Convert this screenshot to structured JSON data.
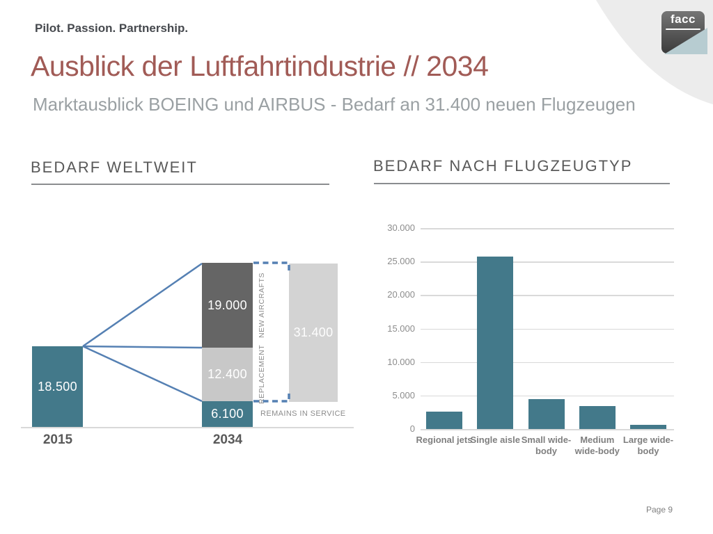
{
  "slide": {
    "tagline": "Pilot. Passion. Partnership.",
    "title": "Ausblick der Luftfahrtindustrie // 2034",
    "subtitle": "Marktausblick BOEING und AIRBUS - Bedarf an 31.400 neuen Flugzeugen",
    "page_label": "Page 9",
    "logo_text": "facc"
  },
  "colors": {
    "teal": "#43798a",
    "bar_dark": "#656565",
    "bar_light": "#c8c8c8",
    "bar_total": "#d3d3d3",
    "accent_blue": "#5580b3",
    "title_red": "#a15b56",
    "subtitle_gray": "#9aa0a3",
    "heading_gray": "#595959",
    "tagline_gray": "#46494e",
    "tick_gray": "#8c8c8c",
    "label_gray": "#7f7f7f",
    "grid_gray": "#d9d9d9",
    "swoosh_gray": "#ececec",
    "logo_gray_light": "#757575",
    "logo_gray_dark": "#3b3b3b",
    "logo_wing": "#b7ccd1"
  },
  "chart_data": [
    {
      "type": "bar",
      "variant": "stacked-bridge",
      "title": "BEDARF WELTWEIT",
      "categories": [
        "2015",
        "2034"
      ],
      "bars": {
        "2015": {
          "value": 18500,
          "label": "18.500",
          "year": "2015"
        },
        "2034": {
          "year": "2034",
          "segments": [
            {
              "name": "NEW AIRCRAFTS",
              "value": 19000,
              "label": "19.000"
            },
            {
              "name": "REPLACEMENT",
              "value": 12400,
              "label": "12.400"
            },
            {
              "name": "REMAINS IN SERVICE",
              "value": 6100,
              "label": "6.100"
            }
          ],
          "total": {
            "value": 31400,
            "label": "31.400"
          }
        }
      },
      "legend_position": "none",
      "grid": false,
      "notes": "blue fan lines connect 2015 bar top to the 2034 stack; dashed blue bracket marks the 31.400 new-aircraft span"
    },
    {
      "type": "bar",
      "title": "BEDARF NACH FLUGZEUGTYP",
      "categories": [
        "Regional jets",
        "Single aisle",
        "Small wide-body",
        "Medium wide-body",
        "Large wide-body"
      ],
      "tick_labels": [
        "Regional jets",
        "Single aisle",
        "Small wide-\nbody",
        "Medium\nwide-body",
        "Large wide-\nbody"
      ],
      "values": [
        2600,
        25700,
        4500,
        3400,
        600
      ],
      "ylim": [
        0,
        30000
      ],
      "ytick_labels": [
        "30.000",
        "25.000",
        "20.000",
        "15.000",
        "10.000",
        "5.000",
        "0"
      ],
      "grid": true,
      "legend_position": "none"
    }
  ]
}
